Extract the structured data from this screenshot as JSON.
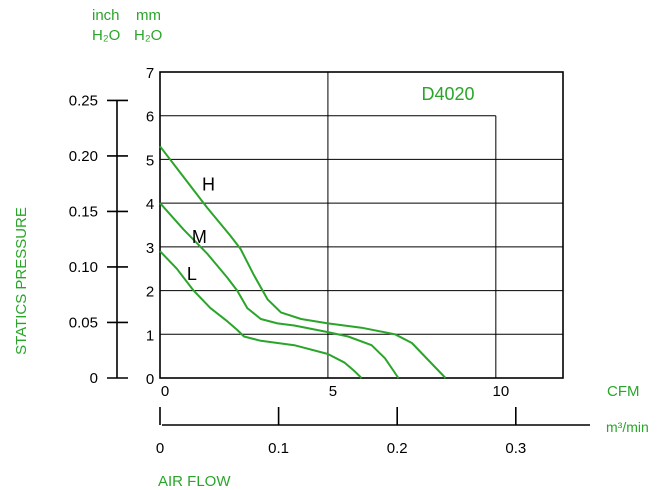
{
  "chart_data": {
    "type": "line",
    "title": "D4020",
    "xlabel": "AIR FLOW",
    "ylabel": "STATICS  PRESSURE",
    "x_unit_primary": "CFM",
    "x_unit_secondary": "m³/min",
    "y_unit_inch_line1": "inch",
    "y_unit_inch_line2": "H₂O",
    "y_unit_mm_line1": "mm",
    "y_unit_mm_line2": "H₂O",
    "xlim": [
      0,
      12
    ],
    "ylim": [
      0,
      7
    ],
    "x_ticks_cfm": [
      "0",
      "5",
      "10"
    ],
    "x_ticks_m3min": [
      "0",
      "0.1",
      "0.2",
      "0.3"
    ],
    "y_ticks_mm": [
      "0",
      "1",
      "2",
      "3",
      "4",
      "5",
      "6",
      "7"
    ],
    "y_ticks_inch": [
      "0",
      "0.05",
      "0.10",
      "0.15",
      "0.20",
      "0.25"
    ],
    "grid": true,
    "line_color": "#2aa52a",
    "series": [
      {
        "name": "H",
        "x": [
          0,
          0.7,
          1.4,
          2.1,
          2.4,
          2.8,
          3.2,
          3.6,
          4.2,
          5.0,
          6.0,
          7.0,
          7.5,
          8.0,
          8.5
        ],
        "y": [
          5.3,
          4.6,
          3.9,
          3.25,
          2.95,
          2.35,
          1.8,
          1.5,
          1.35,
          1.25,
          1.15,
          1.0,
          0.8,
          0.4,
          0.0
        ]
      },
      {
        "name": "M",
        "x": [
          0,
          0.7,
          1.4,
          2.0,
          2.3,
          2.6,
          3.0,
          3.5,
          4.0,
          5.0,
          5.6,
          6.3,
          6.7,
          7.1
        ],
        "y": [
          4.0,
          3.4,
          2.85,
          2.3,
          2.0,
          1.6,
          1.35,
          1.25,
          1.2,
          1.05,
          0.95,
          0.75,
          0.45,
          0.0
        ]
      },
      {
        "name": "L",
        "x": [
          0,
          0.5,
          1.0,
          1.5,
          2.0,
          2.3,
          2.5,
          3.0,
          4.0,
          5.0,
          5.5,
          5.8,
          6.0
        ],
        "y": [
          2.9,
          2.5,
          2.0,
          1.6,
          1.3,
          1.1,
          0.95,
          0.85,
          0.75,
          0.55,
          0.35,
          0.15,
          0.0
        ]
      }
    ]
  }
}
